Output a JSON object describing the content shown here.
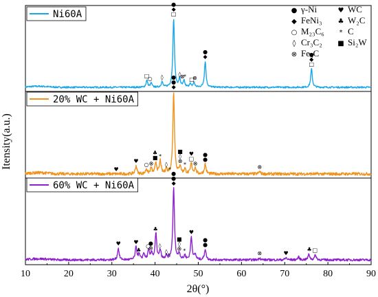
{
  "chart_data": {
    "type": "line",
    "xlabel": "2θ(°)",
    "ylabel": "Itensity(a.u.)",
    "xlim": [
      10,
      90
    ],
    "xticks": [
      10,
      20,
      30,
      40,
      50,
      60,
      70,
      80,
      90
    ],
    "y_ticks_shown": false,
    "grid": false,
    "panels": 3,
    "series": [
      {
        "name": "Ni60A",
        "color": "#1aa7e8",
        "noise": 0.012,
        "peaks": [
          {
            "x": 38.1,
            "h": 0.1
          },
          {
            "x": 39.1,
            "h": 0.06
          },
          {
            "x": 41.6,
            "h": 0.08
          },
          {
            "x": 44.3,
            "h": 1.0
          },
          {
            "x": 45.7,
            "h": 0.12
          },
          {
            "x": 46.7,
            "h": 0.09
          },
          {
            "x": 48.1,
            "h": 0.05
          },
          {
            "x": 49.0,
            "h": 0.07
          },
          {
            "x": 51.6,
            "h": 0.38
          },
          {
            "x": 76.2,
            "h": 0.27
          }
        ],
        "markers": [
          {
            "x": 44.3,
            "syms": [
              "●",
              "◆",
              "□"
            ]
          },
          {
            "x": 51.6,
            "syms": [
              "●",
              "◆"
            ]
          },
          {
            "x": 76.2,
            "syms": [
              "●",
              "◆",
              "□"
            ]
          },
          {
            "x": 38.1,
            "syms": [
              "□"
            ]
          },
          {
            "x": 38.8,
            "syms": [
              "○"
            ]
          },
          {
            "x": 41.6,
            "syms": [
              "◊"
            ]
          },
          {
            "x": 45.7,
            "syms": [
              "◊"
            ]
          },
          {
            "x": 46.3,
            "syms": [
              "⊗"
            ]
          },
          {
            "x": 46.9,
            "syms": [
              "*"
            ]
          },
          {
            "x": 48.5,
            "syms": [
              "□"
            ]
          },
          {
            "x": 49.2,
            "syms": [
              "⊗"
            ]
          }
        ]
      },
      {
        "name": "20% WC + Ni60A",
        "color": "#f0921c",
        "noise": 0.018,
        "peaks": [
          {
            "x": 35.6,
            "h": 0.1
          },
          {
            "x": 38.0,
            "h": 0.06
          },
          {
            "x": 39.1,
            "h": 0.07
          },
          {
            "x": 40.2,
            "h": 0.14
          },
          {
            "x": 41.2,
            "h": 0.16
          },
          {
            "x": 42.6,
            "h": 0.06
          },
          {
            "x": 44.3,
            "h": 1.0
          },
          {
            "x": 45.8,
            "h": 0.1
          },
          {
            "x": 46.9,
            "h": 0.06
          },
          {
            "x": 48.4,
            "h": 0.13
          },
          {
            "x": 49.3,
            "h": 0.07
          },
          {
            "x": 51.6,
            "h": 0.12
          },
          {
            "x": 64.2,
            "h": 0.03
          }
        ],
        "markers": [
          {
            "x": 44.3,
            "syms": [
              "●",
              "●",
              "◆"
            ]
          },
          {
            "x": 31.0,
            "syms": [
              "♥"
            ]
          },
          {
            "x": 35.6,
            "syms": [
              "♥"
            ]
          },
          {
            "x": 38.0,
            "syms": [
              "○"
            ]
          },
          {
            "x": 39.1,
            "syms": [
              "⊗"
            ]
          },
          {
            "x": 40.0,
            "syms": [
              "♣",
              "■"
            ]
          },
          {
            "x": 41.2,
            "syms": [
              "*"
            ]
          },
          {
            "x": 42.6,
            "syms": [
              "◊"
            ]
          },
          {
            "x": 43.4,
            "syms": [
              "*"
            ]
          },
          {
            "x": 45.8,
            "syms": [
              "■",
              "◊",
              "⊗"
            ]
          },
          {
            "x": 46.9,
            "syms": [
              "*"
            ]
          },
          {
            "x": 48.4,
            "syms": [
              "♥",
              "□"
            ]
          },
          {
            "x": 49.3,
            "syms": [
              "⊗"
            ]
          },
          {
            "x": 51.6,
            "syms": [
              "●",
              "●"
            ]
          },
          {
            "x": 64.2,
            "syms": [
              "⊗"
            ]
          }
        ]
      },
      {
        "name": "60% WC + Ni60A",
        "color": "#8e1fcf",
        "noise": 0.016,
        "peaks": [
          {
            "x": 31.5,
            "h": 0.16
          },
          {
            "x": 35.6,
            "h": 0.18
          },
          {
            "x": 36.3,
            "h": 0.07
          },
          {
            "x": 37.4,
            "h": 0.09
          },
          {
            "x": 38.5,
            "h": 0.13
          },
          {
            "x": 39.2,
            "h": 0.1
          },
          {
            "x": 40.2,
            "h": 0.36
          },
          {
            "x": 41.2,
            "h": 0.13
          },
          {
            "x": 42.6,
            "h": 0.05
          },
          {
            "x": 44.3,
            "h": 1.0
          },
          {
            "x": 45.6,
            "h": 0.09
          },
          {
            "x": 46.9,
            "h": 0.06
          },
          {
            "x": 48.4,
            "h": 0.32
          },
          {
            "x": 49.3,
            "h": 0.07
          },
          {
            "x": 51.6,
            "h": 0.15
          },
          {
            "x": 64.2,
            "h": 0.03
          },
          {
            "x": 70.3,
            "h": 0.03
          },
          {
            "x": 73.2,
            "h": 0.04
          },
          {
            "x": 75.6,
            "h": 0.08
          },
          {
            "x": 77.1,
            "h": 0.07
          }
        ],
        "markers": [
          {
            "x": 44.3,
            "syms": [
              "●",
              "●",
              "◆"
            ]
          },
          {
            "x": 31.5,
            "syms": [
              "♥"
            ]
          },
          {
            "x": 35.6,
            "syms": [
              "♥"
            ]
          },
          {
            "x": 36.2,
            "syms": [
              "♣"
            ]
          },
          {
            "x": 38.4,
            "syms": [
              "○"
            ]
          },
          {
            "x": 39.0,
            "syms": [
              "●",
              "⊗"
            ]
          },
          {
            "x": 40.1,
            "syms": [
              "♣"
            ]
          },
          {
            "x": 41.1,
            "syms": [
              "◊"
            ]
          },
          {
            "x": 42.6,
            "syms": [
              "◊"
            ]
          },
          {
            "x": 43.2,
            "syms": [
              "*"
            ]
          },
          {
            "x": 45.6,
            "syms": [
              "■",
              "◊",
              "⊗"
            ]
          },
          {
            "x": 46.8,
            "syms": [
              "*"
            ]
          },
          {
            "x": 48.4,
            "syms": [
              "♥"
            ]
          },
          {
            "x": 51.6,
            "syms": [
              "●",
              "●"
            ]
          },
          {
            "x": 64.2,
            "syms": [
              "⊗"
            ]
          },
          {
            "x": 70.3,
            "syms": [
              "♥"
            ]
          },
          {
            "x": 75.7,
            "syms": [
              "♣"
            ]
          },
          {
            "x": 77.0,
            "syms": [
              "□"
            ]
          }
        ]
      }
    ],
    "phase_legend": [
      {
        "symbol": "●",
        "label": "γ-Ni"
      },
      {
        "symbol": "♥",
        "label": "WC"
      },
      {
        "symbol": "◆",
        "label": "FeNi₃"
      },
      {
        "symbol": "♣",
        "label": "W₂C"
      },
      {
        "symbol": "○",
        "label": "M₂₃C₆"
      },
      {
        "symbol": "*",
        "label": "C"
      },
      {
        "symbol": "◊",
        "label": "Cr₃C₂"
      },
      {
        "symbol": "■",
        "label": "Si₂W"
      },
      {
        "symbol": "⊗",
        "label": "Fe₃C"
      }
    ],
    "phase_legend_placement": "top-right"
  }
}
